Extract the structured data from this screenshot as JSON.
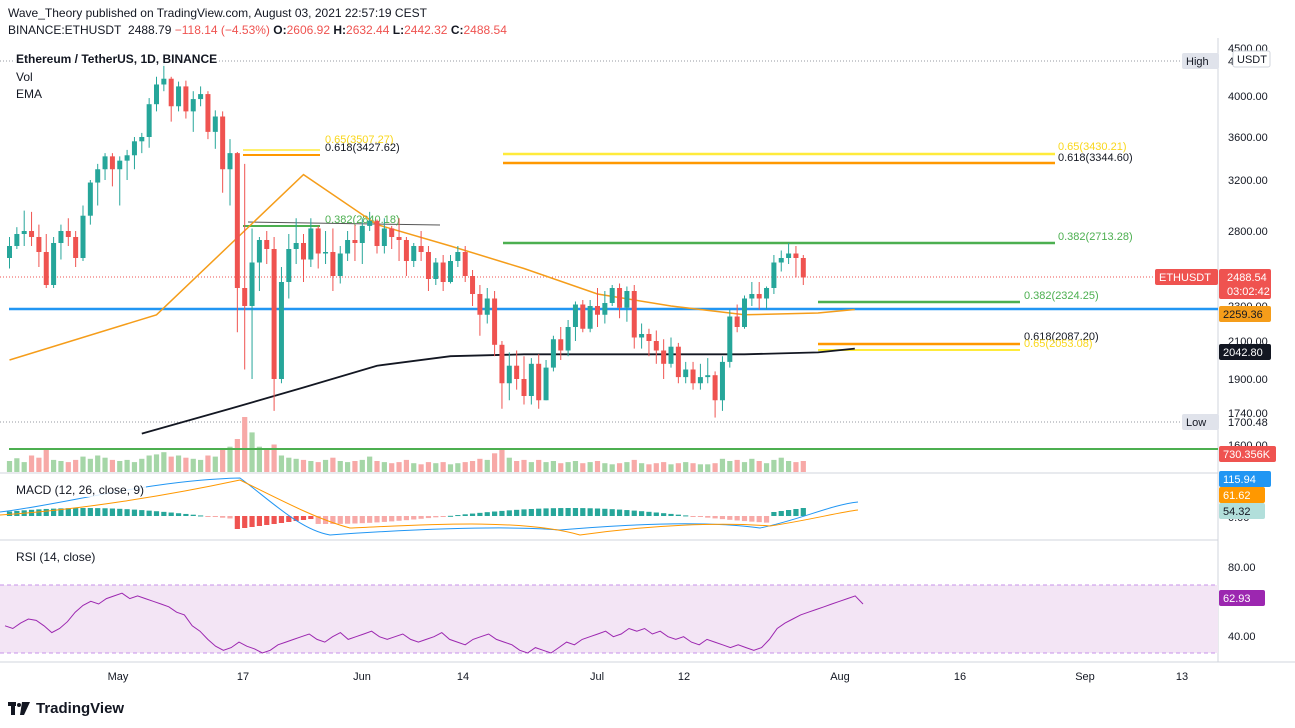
{
  "header": {
    "publisher_line": "Wave_Theory published on TradingView.com, August 03, 2021 22:57:19 CEST",
    "symbol": "BINANCE:ETHUSDT",
    "last": "2488.79",
    "change": "−118.14 (−4.53%)",
    "open_label": "O:",
    "open": "2606.92",
    "high_label": "H:",
    "high": "2632.44",
    "low_label": "L:",
    "low": "2442.32",
    "close_label": "C:",
    "close": "2488.54"
  },
  "legend": {
    "title": "Ethereum / TetherUS, 1D, BINANCE",
    "vol": "Vol",
    "ema": "EMA",
    "macd": "MACD (12, 26, close, 9)",
    "rsi": "RSI (14, close)"
  },
  "axis": {
    "currency": "USDT",
    "price_ticks": [
      "4000.00",
      "3600.00",
      "3200.00",
      "2800.00",
      "2100.00",
      "1900.00",
      "1740.00"
    ],
    "price_ticks_partial": [
      "4500.00",
      "2300.00",
      "1600.00"
    ],
    "macd_ticks_partial": [
      "0.00"
    ],
    "rsi_ticks": [
      "80.00",
      "40.00"
    ],
    "time_ticks": [
      "May",
      "17",
      "Jun",
      "14",
      "Jul",
      "12",
      "Aug",
      "16",
      "Sep",
      "13"
    ]
  },
  "tags": {
    "high_label": "High",
    "high_value": "4...",
    "last_symbol": "ETHUSDT",
    "last_price": "2488.54",
    "countdown": "03:02:42",
    "ema_orange": "2259.36",
    "ema_black": "2042.80",
    "low_label": "Low",
    "low_value": "1700.48",
    "volume": "730.356K",
    "macd_line": "115.94",
    "macd_signal": "61.62",
    "macd_hist": "54.32",
    "rsi": "62.93"
  },
  "fib_labels": {
    "left_065": "0.65(3507.27)",
    "left_0618": "0.618(3427.62)",
    "left_0382": "0.382(2840.18)",
    "right_065": "0.65(3430.21)",
    "right_0618": "0.618(3344.60)",
    "right_0382": "0.382(2713.28)",
    "low_0382": "0.382(2324.25)",
    "low_0618": "0.618(2087.20)",
    "low_065": "0.65(2053.08)"
  },
  "colors": {
    "up": "#26a69a",
    "down": "#ef5350",
    "ema_fast": "#f59d1a",
    "ema_slow": "#131722",
    "fib_green": "#4caf50",
    "fib_orange": "#ff9800",
    "fib_yellow": "#ffeb3b",
    "support_blue": "#2196f3",
    "rsi_band": "#f3e5f5",
    "rsi_line": "#9c27b0",
    "macd_blue": "#2196f3",
    "macd_orange": "#ff9800"
  },
  "chart_data": {
    "type": "candlestick",
    "title": "Ethereum / TetherUS, 1D, BINANCE",
    "y_axis_unit": "USDT",
    "candles": [
      [
        2620,
        2760,
        2550,
        2700
      ],
      [
        2700,
        2830,
        2680,
        2780
      ],
      [
        2780,
        2960,
        2700,
        2800
      ],
      [
        2800,
        2950,
        2700,
        2760
      ],
      [
        2760,
        2850,
        2560,
        2660
      ],
      [
        2660,
        2780,
        2420,
        2440
      ],
      [
        2440,
        2760,
        2420,
        2720
      ],
      [
        2720,
        2850,
        2610,
        2800
      ],
      [
        2800,
        2900,
        2700,
        2760
      ],
      [
        2760,
        2800,
        2560,
        2620
      ],
      [
        2620,
        3000,
        2600,
        2920
      ],
      [
        2920,
        3200,
        2850,
        3180
      ],
      [
        3180,
        3350,
        3000,
        3300
      ],
      [
        3300,
        3450,
        3200,
        3420
      ],
      [
        3420,
        3450,
        3150,
        3300
      ],
      [
        3300,
        3420,
        3000,
        3380
      ],
      [
        3380,
        3480,
        3200,
        3430
      ],
      [
        3430,
        3600,
        3300,
        3560
      ],
      [
        3560,
        3640,
        3450,
        3600
      ],
      [
        3600,
        3980,
        3500,
        3920
      ],
      [
        3920,
        4200,
        3850,
        4120
      ],
      [
        4120,
        4380,
        4050,
        4180
      ],
      [
        4180,
        4200,
        3750,
        3900
      ],
      [
        3900,
        4150,
        3850,
        4100
      ],
      [
        4100,
        4160,
        3780,
        3850
      ],
      [
        3850,
        4050,
        3650,
        3970
      ],
      [
        3970,
        4100,
        3900,
        4020
      ],
      [
        4020,
        4050,
        3580,
        3650
      ],
      [
        3650,
        3860,
        3490,
        3800
      ],
      [
        3800,
        3850,
        3100,
        3300
      ],
      [
        3300,
        3580,
        3000,
        3450
      ],
      [
        3450,
        3460,
        2150,
        2420
      ],
      [
        2420,
        3350,
        1950,
        2300
      ],
      [
        2300,
        2820,
        1900,
        2590
      ],
      [
        2590,
        2760,
        2400,
        2740
      ],
      [
        2740,
        2800,
        2580,
        2680
      ],
      [
        2680,
        2760,
        1750,
        1900
      ],
      [
        1900,
        2560,
        1880,
        2460
      ],
      [
        2460,
        2780,
        2350,
        2680
      ],
      [
        2680,
        2900,
        2580,
        2720
      ],
      [
        2720,
        2780,
        2460,
        2610
      ],
      [
        2610,
        2900,
        2560,
        2820
      ],
      [
        2820,
        2840,
        2550,
        2650
      ],
      [
        2650,
        2800,
        2580,
        2660
      ],
      [
        2660,
        2820,
        2400,
        2500
      ],
      [
        2500,
        2700,
        2450,
        2650
      ],
      [
        2650,
        2800,
        2600,
        2740
      ],
      [
        2740,
        2850,
        2600,
        2720
      ],
      [
        2720,
        2900,
        2580,
        2840
      ],
      [
        2840,
        2950,
        2800,
        2880
      ],
      [
        2880,
        2890,
        2650,
        2700
      ],
      [
        2700,
        2900,
        2650,
        2820
      ],
      [
        2820,
        2840,
        2680,
        2760
      ],
      [
        2760,
        2900,
        2600,
        2740
      ],
      [
        2740,
        2760,
        2500,
        2600
      ],
      [
        2600,
        2720,
        2560,
        2700
      ],
      [
        2700,
        2800,
        2600,
        2660
      ],
      [
        2660,
        2700,
        2400,
        2480
      ],
      [
        2480,
        2620,
        2440,
        2590
      ],
      [
        2590,
        2640,
        2400,
        2460
      ],
      [
        2460,
        2640,
        2450,
        2600
      ],
      [
        2600,
        2700,
        2560,
        2660
      ],
      [
        2660,
        2700,
        2460,
        2500
      ],
      [
        2500,
        2540,
        2300,
        2380
      ],
      [
        2380,
        2440,
        2130,
        2250
      ],
      [
        2250,
        2420,
        2200,
        2350
      ],
      [
        2350,
        2400,
        2020,
        2080
      ],
      [
        2080,
        2100,
        1760,
        1880
      ],
      [
        1880,
        2040,
        1800,
        1970
      ],
      [
        1970,
        2050,
        1850,
        1900
      ],
      [
        1900,
        2020,
        1780,
        1820
      ],
      [
        1820,
        2010,
        1780,
        1980
      ],
      [
        1980,
        2030,
        1760,
        1800
      ],
      [
        1800,
        2000,
        1800,
        1960
      ],
      [
        1960,
        2130,
        1940,
        2110
      ],
      [
        2110,
        2180,
        2000,
        2050
      ],
      [
        2050,
        2220,
        2020,
        2180
      ],
      [
        2180,
        2330,
        2100,
        2310
      ],
      [
        2310,
        2340,
        2150,
        2170
      ],
      [
        2170,
        2340,
        2150,
        2300
      ],
      [
        2300,
        2420,
        2180,
        2250
      ],
      [
        2250,
        2400,
        2200,
        2320
      ],
      [
        2320,
        2440,
        2300,
        2420
      ],
      [
        2420,
        2450,
        2230,
        2290
      ],
      [
        2290,
        2430,
        2210,
        2400
      ],
      [
        2400,
        2440,
        2060,
        2120
      ],
      [
        2120,
        2200,
        2060,
        2140
      ],
      [
        2140,
        2170,
        2020,
        2100
      ],
      [
        2100,
        2160,
        1980,
        2050
      ],
      [
        2050,
        2110,
        1900,
        1980
      ],
      [
        1980,
        2120,
        1960,
        2070
      ],
      [
        2070,
        2090,
        1880,
        1910
      ],
      [
        1910,
        1990,
        1880,
        1950
      ],
      [
        1950,
        1990,
        1850,
        1880
      ],
      [
        1880,
        1980,
        1850,
        1910
      ],
      [
        1910,
        2010,
        1880,
        1920
      ],
      [
        1920,
        1940,
        1720,
        1800
      ],
      [
        1800,
        2020,
        1750,
        1990
      ],
      [
        1990,
        2280,
        1960,
        2240
      ],
      [
        2240,
        2310,
        2150,
        2180
      ],
      [
        2180,
        2370,
        2170,
        2350
      ],
      [
        2350,
        2460,
        2300,
        2380
      ],
      [
        2380,
        2460,
        2280,
        2350
      ],
      [
        2350,
        2430,
        2280,
        2420
      ],
      [
        2420,
        2640,
        2380,
        2590
      ],
      [
        2590,
        2670,
        2530,
        2620
      ],
      [
        2620,
        2720,
        2580,
        2650
      ],
      [
        2650,
        2700,
        2490,
        2620
      ],
      [
        2620,
        2640,
        2440,
        2490
      ]
    ],
    "ema_fast_points": [
      [
        0,
        2000
      ],
      [
        20,
        2250
      ],
      [
        40,
        3250
      ],
      [
        50,
        2850
      ],
      [
        60,
        2700
      ],
      [
        70,
        2550
      ],
      [
        80,
        2380
      ],
      [
        90,
        2300
      ],
      [
        100,
        2250
      ],
      [
        110,
        2260
      ],
      [
        115,
        2280
      ]
    ],
    "ema_slow_points": [
      [
        18,
        1650
      ],
      [
        30,
        1760
      ],
      [
        40,
        1860
      ],
      [
        50,
        1970
      ],
      [
        60,
        2020
      ],
      [
        70,
        2030
      ],
      [
        80,
        2030
      ],
      [
        90,
        2030
      ],
      [
        100,
        2030
      ],
      [
        110,
        2040
      ],
      [
        115,
        2060
      ]
    ]
  }
}
